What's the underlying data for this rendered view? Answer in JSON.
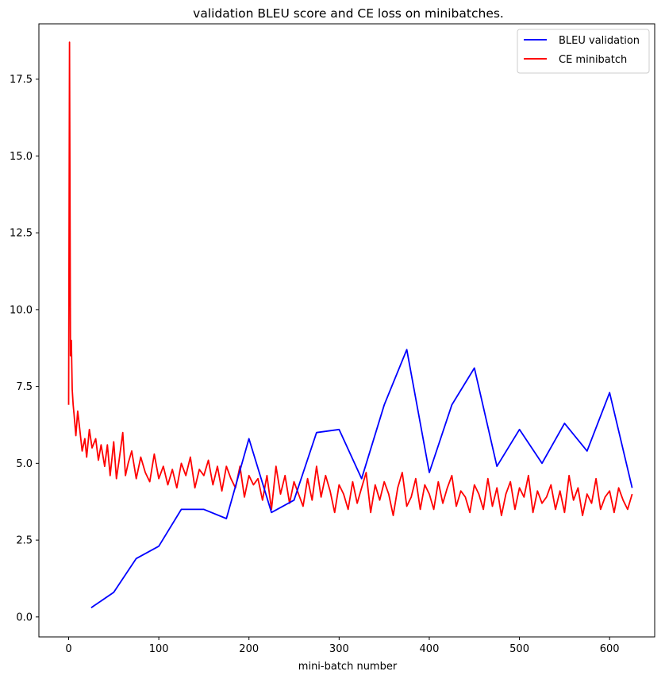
{
  "chart_data": {
    "type": "line",
    "title": "validation BLEU score and CE loss on minibatches.",
    "xlabel": "mini-batch number",
    "ylabel": "",
    "xlim": [
      -33,
      650
    ],
    "ylim": [
      -0.65,
      19.3
    ],
    "xticks": [
      0,
      100,
      200,
      300,
      400,
      500,
      600
    ],
    "xtick_labels": [
      "0",
      "100",
      "200",
      "300",
      "400",
      "500",
      "600"
    ],
    "yticks": [
      0.0,
      2.5,
      5.0,
      7.5,
      10.0,
      12.5,
      15.0,
      17.5
    ],
    "ytick_labels": [
      "0.0",
      "2.5",
      "5.0",
      "7.5",
      "10.0",
      "12.5",
      "15.0",
      "17.5"
    ],
    "grid": false,
    "legend_position": "top-right",
    "series": [
      {
        "name": "BLEU validation",
        "color": "#0000ff",
        "x": [
          25,
          50,
          75,
          100,
          125,
          150,
          175,
          200,
          225,
          250,
          275,
          300,
          325,
          350,
          375,
          400,
          425,
          450,
          475,
          500,
          525,
          550,
          575,
          600,
          625
        ],
        "y": [
          0.3,
          0.8,
          1.9,
          2.3,
          3.5,
          3.5,
          3.2,
          5.8,
          3.4,
          3.8,
          6.0,
          6.1,
          4.5,
          6.9,
          8.7,
          4.7,
          6.9,
          8.1,
          4.9,
          6.1,
          5.0,
          6.3,
          5.4,
          7.3,
          4.2
        ]
      },
      {
        "name": "CE minibatch",
        "color": "#ff0000",
        "x": [
          0,
          1,
          2,
          3,
          4,
          5,
          6,
          8,
          10,
          12,
          15,
          18,
          20,
          23,
          26,
          30,
          33,
          36,
          40,
          43,
          46,
          50,
          53,
          56,
          60,
          63,
          66,
          70,
          75,
          80,
          85,
          90,
          95,
          100,
          105,
          110,
          115,
          120,
          125,
          130,
          135,
          140,
          145,
          150,
          155,
          160,
          165,
          170,
          175,
          180,
          185,
          190,
          195,
          200,
          205,
          210,
          215,
          220,
          225,
          230,
          235,
          240,
          245,
          250,
          255,
          260,
          265,
          270,
          275,
          280,
          285,
          290,
          295,
          300,
          305,
          310,
          315,
          320,
          325,
          330,
          335,
          340,
          345,
          350,
          355,
          360,
          365,
          370,
          375,
          380,
          385,
          390,
          395,
          400,
          405,
          410,
          415,
          420,
          425,
          430,
          435,
          440,
          445,
          450,
          455,
          460,
          465,
          470,
          475,
          480,
          485,
          490,
          495,
          500,
          505,
          510,
          515,
          520,
          525,
          530,
          535,
          540,
          545,
          550,
          555,
          560,
          565,
          570,
          575,
          580,
          585,
          590,
          595,
          600,
          605,
          610,
          615,
          620,
          625
        ],
        "y": [
          6.9,
          18.7,
          8.5,
          9.0,
          7.4,
          6.9,
          6.6,
          5.9,
          6.7,
          6.2,
          5.4,
          5.8,
          5.2,
          6.1,
          5.5,
          5.8,
          5.1,
          5.6,
          4.9,
          5.6,
          4.6,
          5.7,
          4.5,
          5.1,
          6.0,
          4.6,
          5.0,
          5.4,
          4.5,
          5.2,
          4.7,
          4.4,
          5.3,
          4.5,
          4.9,
          4.3,
          4.8,
          4.2,
          5.0,
          4.6,
          5.2,
          4.2,
          4.8,
          4.6,
          5.1,
          4.3,
          4.9,
          4.1,
          4.9,
          4.5,
          4.2,
          4.9,
          3.9,
          4.6,
          4.3,
          4.5,
          3.8,
          4.6,
          3.5,
          4.9,
          4.0,
          4.6,
          3.7,
          4.4,
          4.0,
          3.6,
          4.5,
          3.8,
          4.9,
          3.9,
          4.6,
          4.1,
          3.4,
          4.3,
          4.0,
          3.5,
          4.4,
          3.7,
          4.2,
          4.7,
          3.4,
          4.3,
          3.8,
          4.4,
          4.0,
          3.3,
          4.2,
          4.7,
          3.6,
          3.9,
          4.5,
          3.5,
          4.3,
          4.0,
          3.5,
          4.4,
          3.7,
          4.2,
          4.6,
          3.6,
          4.1,
          3.9,
          3.4,
          4.3,
          4.0,
          3.5,
          4.5,
          3.6,
          4.2,
          3.3,
          4.0,
          4.4,
          3.5,
          4.2,
          3.9,
          4.6,
          3.4,
          4.1,
          3.7,
          3.9,
          4.3,
          3.5,
          4.1,
          3.4,
          4.6,
          3.8,
          4.2,
          3.3,
          4.0,
          3.7,
          4.5,
          3.5,
          3.9,
          4.1,
          3.4,
          4.2,
          3.8,
          3.5,
          4.0
        ]
      }
    ]
  }
}
